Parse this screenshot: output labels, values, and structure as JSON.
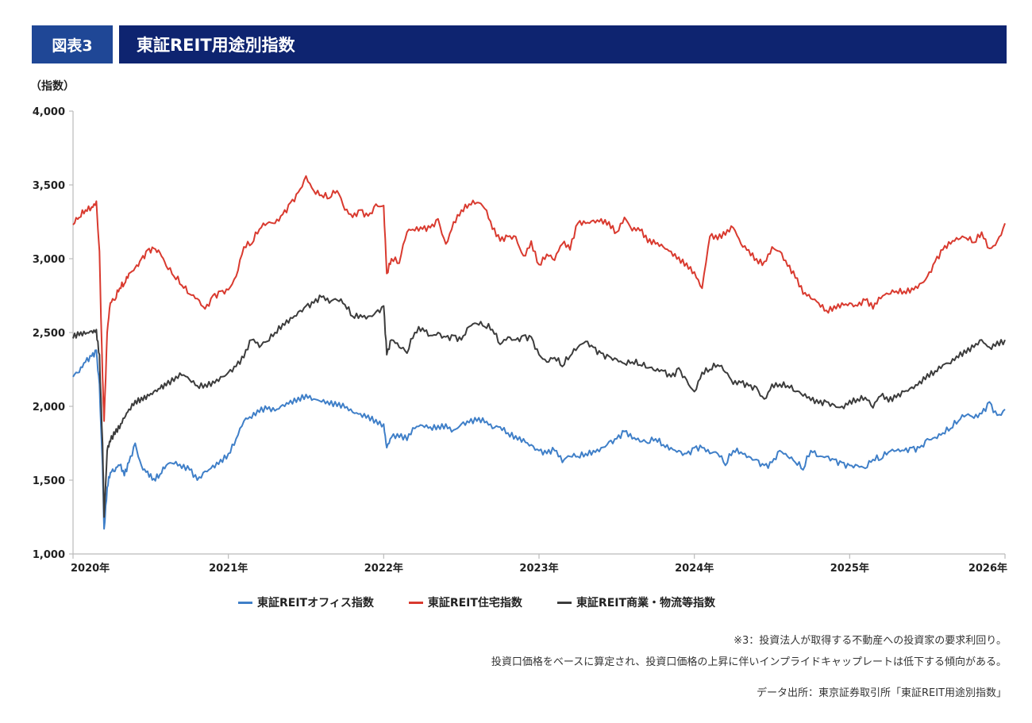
{
  "header": {
    "figure_label": "図表3",
    "title": "東証REIT用途別指数"
  },
  "chart_data": {
    "type": "line",
    "title": "東証REIT用途別指数",
    "xlabel": "",
    "ylabel": "（指数）",
    "ylim": [
      1000,
      4000
    ],
    "xlim": [
      2020.0,
      2026.0
    ],
    "yticks": [
      1000,
      1500,
      2000,
      2500,
      3000,
      3500,
      4000
    ],
    "ytick_labels": [
      "1,000",
      "1,500",
      "2,000",
      "2,500",
      "3,000",
      "3,500",
      "4,000"
    ],
    "xticks": [
      2020,
      2021,
      2022,
      2023,
      2024,
      2025,
      2026
    ],
    "xtick_labels": [
      "2020年",
      "2021年",
      "2022年",
      "2023年",
      "2024年",
      "2025年",
      "2026年"
    ],
    "grid": false,
    "legend_position": "bottom-center",
    "series": [
      {
        "name": "東証REITオフィス指数",
        "color": "#3f7fc8",
        "x": [
          2020.0,
          2020.04,
          2020.08,
          2020.12,
          2020.15,
          2020.17,
          2020.19,
          2020.2,
          2020.22,
          2020.24,
          2020.27,
          2020.3,
          2020.33,
          2020.36,
          2020.4,
          2020.44,
          2020.48,
          2020.52,
          2020.56,
          2020.6,
          2020.65,
          2020.7,
          2020.75,
          2020.8,
          2020.85,
          2020.9,
          2020.95,
          2021.0,
          2021.05,
          2021.1,
          2021.15,
          2021.2,
          2021.25,
          2021.3,
          2021.35,
          2021.4,
          2021.45,
          2021.5,
          2021.55,
          2021.6,
          2021.65,
          2021.7,
          2021.75,
          2021.8,
          2021.85,
          2021.9,
          2021.95,
          2022.0,
          2022.02,
          2022.05,
          2022.1,
          2022.15,
          2022.2,
          2022.25,
          2022.3,
          2022.35,
          2022.4,
          2022.45,
          2022.5,
          2022.55,
          2022.6,
          2022.65,
          2022.7,
          2022.75,
          2022.8,
          2022.85,
          2022.9,
          2022.95,
          2023.0,
          2023.05,
          2023.1,
          2023.15,
          2023.2,
          2023.25,
          2023.3,
          2023.35,
          2023.4,
          2023.45,
          2023.5,
          2023.55,
          2023.6,
          2023.65,
          2023.7,
          2023.75,
          2023.8,
          2023.85,
          2023.9,
          2023.95,
          2024.0,
          2024.05,
          2024.1,
          2024.15,
          2024.2,
          2024.25,
          2024.3,
          2024.35,
          2024.4,
          2024.45,
          2024.5,
          2024.55,
          2024.6,
          2024.65,
          2024.7,
          2024.75,
          2024.8,
          2024.85,
          2024.9,
          2024.95,
          2025.0,
          2025.05,
          2025.1,
          2025.15,
          2025.2,
          2025.25,
          2025.3,
          2025.35,
          2025.4,
          2025.45,
          2025.5,
          2025.55,
          2025.6,
          2025.65,
          2025.7,
          2025.75,
          2025.8,
          2025.85,
          2025.9,
          2025.95,
          2026.0
        ],
        "values": [
          2200,
          2230,
          2300,
          2340,
          2380,
          2150,
          1600,
          1170,
          1450,
          1550,
          1560,
          1600,
          1530,
          1620,
          1750,
          1600,
          1560,
          1510,
          1540,
          1600,
          1610,
          1580,
          1570,
          1500,
          1560,
          1600,
          1640,
          1680,
          1780,
          1900,
          1920,
          1960,
          1980,
          1970,
          2010,
          2040,
          2060,
          2080,
          2050,
          2030,
          2010,
          2000,
          1990,
          1960,
          1950,
          1940,
          1910,
          1880,
          1720,
          1790,
          1790,
          1770,
          1850,
          1870,
          1860,
          1870,
          1880,
          1840,
          1880,
          1890,
          1900,
          1890,
          1850,
          1860,
          1820,
          1800,
          1780,
          1740,
          1700,
          1680,
          1700,
          1620,
          1660,
          1660,
          1680,
          1700,
          1720,
          1760,
          1780,
          1830,
          1780,
          1760,
          1750,
          1780,
          1740,
          1720,
          1700,
          1680,
          1720,
          1720,
          1680,
          1680,
          1600,
          1700,
          1690,
          1660,
          1640,
          1600,
          1620,
          1700,
          1660,
          1620,
          1570,
          1700,
          1660,
          1660,
          1640,
          1620,
          1600,
          1600,
          1580,
          1640,
          1640,
          1690,
          1700,
          1700,
          1720,
          1720,
          1780,
          1790,
          1820,
          1850,
          1900,
          1940,
          1920,
          1950,
          2030,
          1940,
          1980
        ]
      },
      {
        "name": "東証REIT住宅指数",
        "color": "#d93a2f",
        "x": [
          2020.0,
          2020.04,
          2020.08,
          2020.12,
          2020.15,
          2020.17,
          2020.19,
          2020.2,
          2020.22,
          2020.24,
          2020.27,
          2020.3,
          2020.33,
          2020.36,
          2020.4,
          2020.44,
          2020.48,
          2020.52,
          2020.56,
          2020.6,
          2020.65,
          2020.7,
          2020.75,
          2020.8,
          2020.85,
          2020.9,
          2020.95,
          2021.0,
          2021.05,
          2021.1,
          2021.15,
          2021.2,
          2021.25,
          2021.3,
          2021.35,
          2021.4,
          2021.45,
          2021.5,
          2021.55,
          2021.6,
          2021.65,
          2021.7,
          2021.75,
          2021.8,
          2021.85,
          2021.9,
          2021.95,
          2022.0,
          2022.02,
          2022.05,
          2022.1,
          2022.15,
          2022.2,
          2022.25,
          2022.3,
          2022.35,
          2022.4,
          2022.45,
          2022.5,
          2022.55,
          2022.6,
          2022.65,
          2022.7,
          2022.75,
          2022.8,
          2022.85,
          2022.9,
          2022.95,
          2023.0,
          2023.05,
          2023.1,
          2023.15,
          2023.2,
          2023.25,
          2023.3,
          2023.35,
          2023.4,
          2023.45,
          2023.5,
          2023.55,
          2023.6,
          2023.65,
          2023.7,
          2023.75,
          2023.8,
          2023.85,
          2023.9,
          2023.95,
          2024.0,
          2024.05,
          2024.1,
          2024.15,
          2024.2,
          2024.25,
          2024.3,
          2024.35,
          2024.4,
          2024.45,
          2024.5,
          2024.55,
          2024.6,
          2024.65,
          2024.7,
          2024.75,
          2024.8,
          2024.85,
          2024.9,
          2024.95,
          2025.0,
          2025.05,
          2025.1,
          2025.15,
          2025.2,
          2025.25,
          2025.3,
          2025.35,
          2025.4,
          2025.45,
          2025.5,
          2025.55,
          2025.6,
          2025.65,
          2025.7,
          2025.75,
          2025.8,
          2025.85,
          2025.9,
          2025.95,
          2026.0
        ],
        "values": [
          3230,
          3280,
          3330,
          3350,
          3390,
          3050,
          2200,
          1900,
          2500,
          2700,
          2720,
          2800,
          2830,
          2900,
          2940,
          3000,
          3060,
          3070,
          3040,
          2950,
          2880,
          2820,
          2760,
          2730,
          2660,
          2750,
          2780,
          2790,
          2880,
          3080,
          3100,
          3200,
          3240,
          3240,
          3300,
          3380,
          3450,
          3560,
          3460,
          3430,
          3410,
          3460,
          3330,
          3280,
          3330,
          3290,
          3370,
          3360,
          2900,
          3000,
          2970,
          3180,
          3190,
          3200,
          3210,
          3270,
          3100,
          3250,
          3330,
          3370,
          3380,
          3340,
          3200,
          3120,
          3150,
          3150,
          3020,
          3120,
          2960,
          3030,
          2990,
          3100,
          3060,
          3240,
          3240,
          3260,
          3270,
          3250,
          3180,
          3280,
          3190,
          3190,
          3110,
          3100,
          3080,
          3050,
          3010,
          2970,
          2910,
          2800,
          3150,
          3130,
          3160,
          3210,
          3100,
          3060,
          3000,
          2980,
          3080,
          3050,
          2950,
          2870,
          2760,
          2730,
          2700,
          2650,
          2680,
          2700,
          2700,
          2680,
          2720,
          2660,
          2730,
          2760,
          2780,
          2780,
          2800,
          2830,
          2880,
          2980,
          3060,
          3100,
          3130,
          3140,
          3110,
          3180,
          3070,
          3120,
          3240
        ]
      },
      {
        "name": "東証REIT商業・物流等指数",
        "color": "#3c3c3c",
        "x": [
          2020.0,
          2020.04,
          2020.08,
          2020.12,
          2020.15,
          2020.17,
          2020.19,
          2020.2,
          2020.22,
          2020.24,
          2020.27,
          2020.3,
          2020.33,
          2020.36,
          2020.4,
          2020.44,
          2020.48,
          2020.52,
          2020.56,
          2020.6,
          2020.65,
          2020.7,
          2020.75,
          2020.8,
          2020.85,
          2020.9,
          2020.95,
          2021.0,
          2021.05,
          2021.1,
          2021.15,
          2021.2,
          2021.25,
          2021.3,
          2021.35,
          2021.4,
          2021.45,
          2021.5,
          2021.55,
          2021.6,
          2021.65,
          2021.7,
          2021.75,
          2021.8,
          2021.85,
          2021.9,
          2021.95,
          2022.0,
          2022.02,
          2022.05,
          2022.1,
          2022.15,
          2022.2,
          2022.25,
          2022.3,
          2022.35,
          2022.4,
          2022.45,
          2022.5,
          2022.55,
          2022.6,
          2022.65,
          2022.7,
          2022.75,
          2022.8,
          2022.85,
          2022.9,
          2022.95,
          2023.0,
          2023.05,
          2023.1,
          2023.15,
          2023.2,
          2023.25,
          2023.3,
          2023.35,
          2023.4,
          2023.45,
          2023.5,
          2023.55,
          2023.6,
          2023.65,
          2023.7,
          2023.75,
          2023.8,
          2023.85,
          2023.9,
          2023.95,
          2024.0,
          2024.05,
          2024.1,
          2024.15,
          2024.2,
          2024.25,
          2024.3,
          2024.35,
          2024.4,
          2024.45,
          2024.5,
          2024.55,
          2024.6,
          2024.65,
          2024.7,
          2024.75,
          2024.8,
          2024.85,
          2024.9,
          2024.95,
          2025.0,
          2025.05,
          2025.1,
          2025.15,
          2025.2,
          2025.25,
          2025.3,
          2025.35,
          2025.4,
          2025.45,
          2025.5,
          2025.55,
          2025.6,
          2025.65,
          2025.7,
          2025.75,
          2025.8,
          2025.85,
          2025.9,
          2025.95,
          2026.0
        ],
        "values": [
          2460,
          2480,
          2490,
          2510,
          2520,
          2350,
          1750,
          1250,
          1700,
          1760,
          1810,
          1850,
          1920,
          1980,
          2040,
          2060,
          2080,
          2100,
          2120,
          2140,
          2170,
          2210,
          2180,
          2140,
          2150,
          2170,
          2200,
          2230,
          2270,
          2330,
          2450,
          2400,
          2440,
          2500,
          2560,
          2600,
          2640,
          2680,
          2700,
          2740,
          2700,
          2720,
          2690,
          2610,
          2620,
          2610,
          2640,
          2680,
          2350,
          2450,
          2400,
          2360,
          2500,
          2530,
          2480,
          2500,
          2470,
          2480,
          2450,
          2540,
          2560,
          2540,
          2520,
          2420,
          2470,
          2450,
          2480,
          2470,
          2350,
          2300,
          2330,
          2270,
          2340,
          2400,
          2440,
          2400,
          2360,
          2340,
          2320,
          2290,
          2300,
          2280,
          2260,
          2240,
          2240,
          2200,
          2260,
          2180,
          2100,
          2230,
          2250,
          2280,
          2230,
          2150,
          2160,
          2140,
          2130,
          2050,
          2150,
          2150,
          2140,
          2100,
          2070,
          2040,
          2020,
          2030,
          2010,
          2000,
          2040,
          2050,
          2060,
          1990,
          2070,
          2030,
          2060,
          2100,
          2130,
          2170,
          2220,
          2240,
          2280,
          2290,
          2330,
          2360,
          2400,
          2450,
          2400,
          2440,
          2450
        ]
      }
    ],
    "legend": [
      "東証REITオフィス指数",
      "東証REIT住宅指数",
      "東証REIT商業・物流等指数"
    ]
  },
  "notes": {
    "line1": "※3：投資法人が取得する不動産への投資家の要求利回り。",
    "line2": "投資口価格をベースに算定され、投資口価格の上昇に伴いインプライドキャップレートは低下する傾向がある。",
    "source": "データ出所：東京証券取引所「東証REIT用途別指数」"
  }
}
